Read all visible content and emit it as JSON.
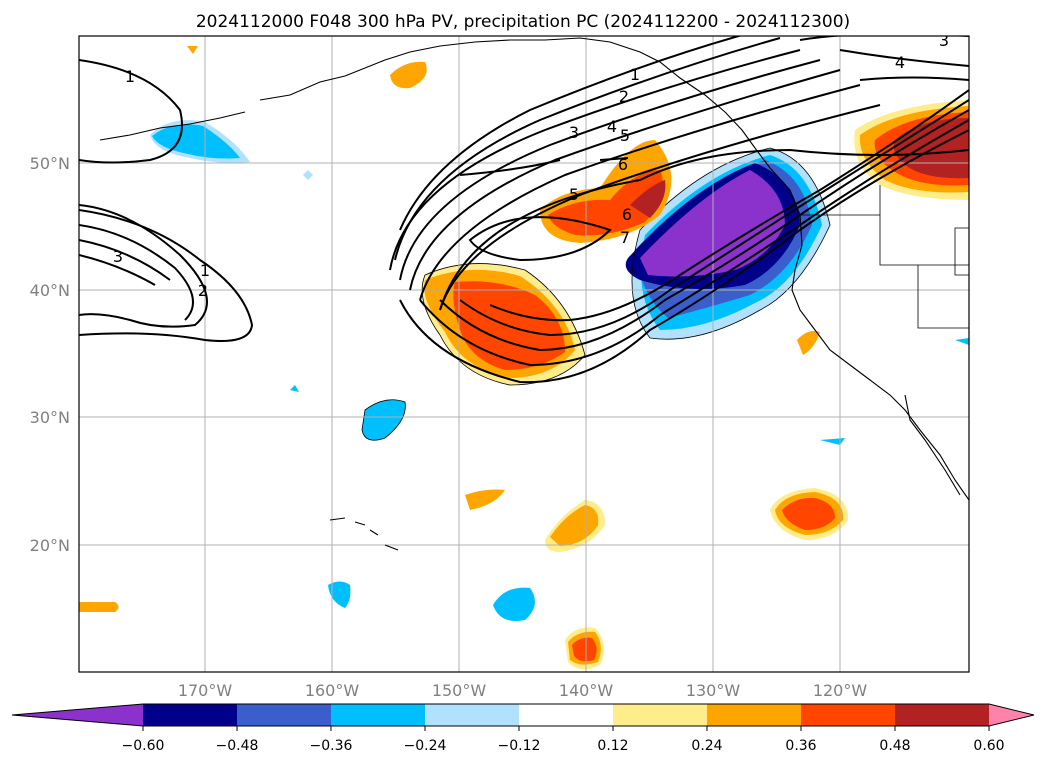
{
  "title": "2024112000 F048 300 hPa PV, precipitation PC (2024112200 - 2024112300)",
  "lat_labels": [
    "50°N",
    "40°N",
    "30°N",
    "20°N"
  ],
  "lon_labels": [
    "170°W",
    "160°W",
    "150°W",
    "140°W",
    "130°W",
    "120°W"
  ],
  "colorbar": {
    "ticks": [
      "−0.60",
      "−0.48",
      "−0.36",
      "−0.24",
      "−0.12",
      "0.12",
      "0.24",
      "0.36",
      "0.48",
      "0.60"
    ],
    "colors": [
      "#8b32cc",
      "#00008b",
      "#3a5fcd",
      "#00bfff",
      "#b0e2ff",
      "#ffffff",
      "#ffec8b",
      "#ffa500",
      "#ff4500",
      "#b22222",
      "#ff82ab"
    ]
  },
  "contour_labels": [
    "1",
    "1",
    "2",
    "3",
    "1",
    "2",
    "3",
    "4",
    "5",
    "6",
    "5",
    "6",
    "7",
    "4",
    "3"
  ],
  "map_extent": {
    "lon": [
      -180,
      -110
    ],
    "lat": [
      10,
      60
    ]
  }
}
